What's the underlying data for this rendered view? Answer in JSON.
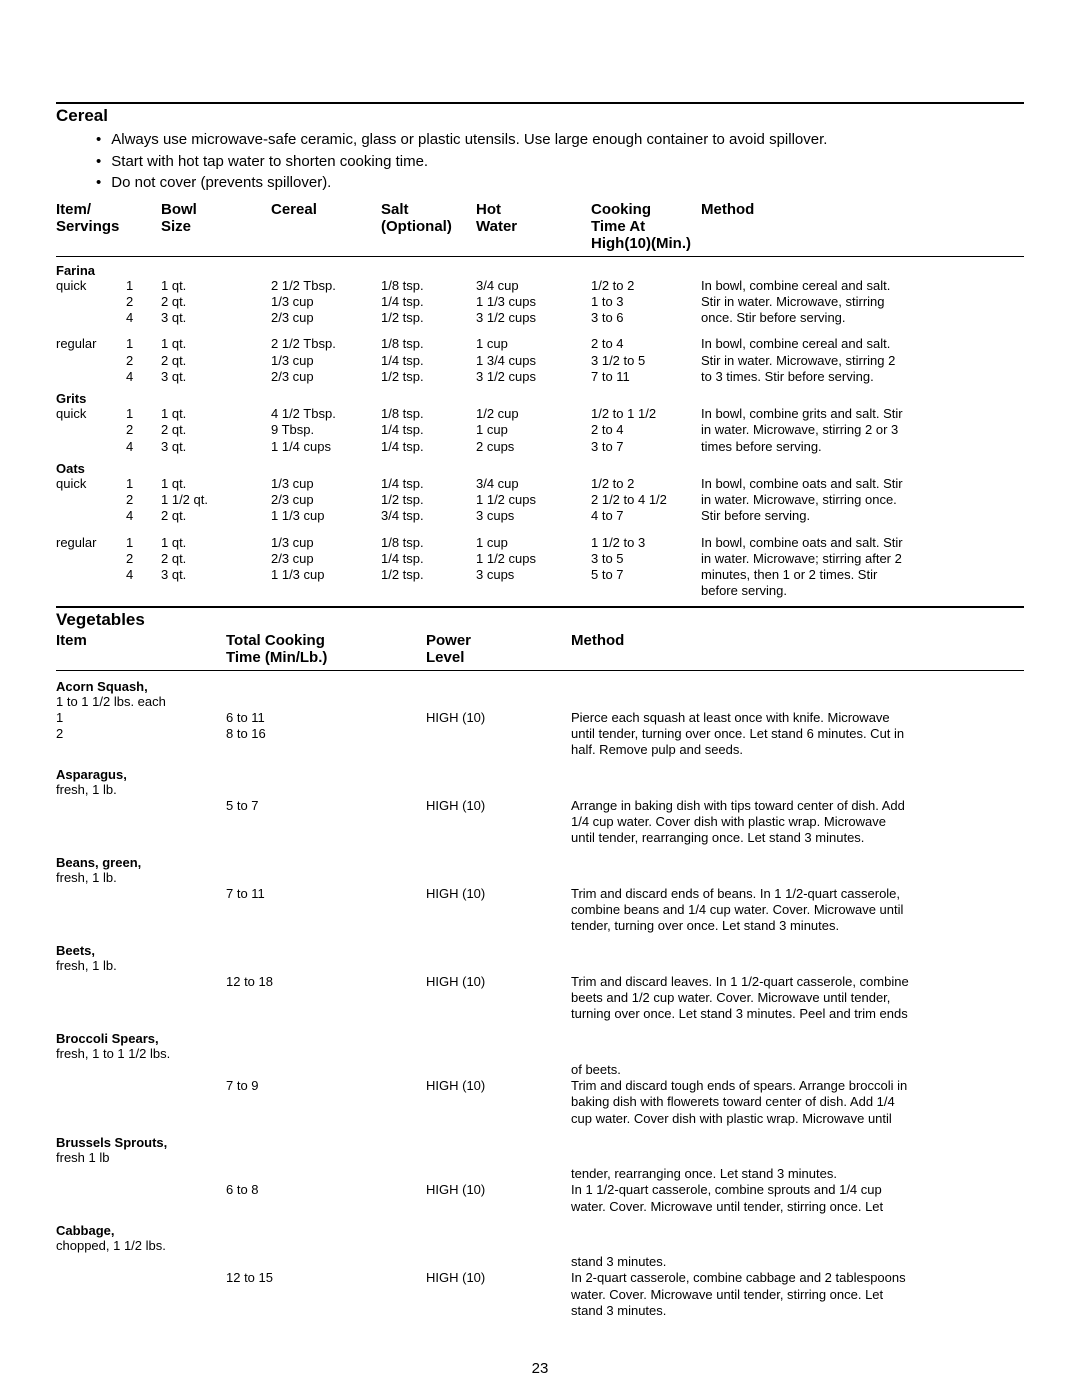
{
  "page_number": "23",
  "cereal": {
    "title": "Cereal",
    "tips": [
      "Always use microwave-safe ceramic, glass or plastic utensils.  Use large enough container to avoid spillover.",
      "Start with hot tap water to shorten cooking time.",
      "Do not cover (prevents spillover)."
    ],
    "headers": {
      "item": "Item/\nServings",
      "bowl": "Bowl\nSize",
      "cereal": "Cereal",
      "salt": "Salt\n(Optional)",
      "hot": "Hot\nWater",
      "time": "Cooking\nTime At\nHigh(10)(Min.)",
      "method": "Method"
    },
    "groups": [
      {
        "name": "Farina",
        "rows": [
          {
            "type": "quick",
            "servings": "1",
            "bowl": "1 qt.",
            "cereal": "2 1/2 Tbsp.",
            "salt": "1/8 tsp.",
            "hot": "3/4 cup",
            "time": "1/2 to 2",
            "method": "In bowl, combine cereal and salt."
          },
          {
            "type": "",
            "servings": "2",
            "bowl": "2 qt.",
            "cereal": "1/3 cup",
            "salt": "1/4 tsp.",
            "hot": "1 1/3 cups",
            "time": "1 to 3",
            "method": "Stir in water.  Microwave, stirring"
          },
          {
            "type": "",
            "servings": "4",
            "bowl": "3 qt.",
            "cereal": "2/3 cup",
            "salt": "1/2 tsp.",
            "hot": "3 1/2 cups",
            "time": "3 to 6",
            "method": "once. Stir before serving."
          },
          {
            "spacer": true
          },
          {
            "type": "regular",
            "servings": "1",
            "bowl": "1 qt.",
            "cereal": "2 1/2 Tbsp.",
            "salt": "1/8 tsp.",
            "hot": "1 cup",
            "time": "2 to 4",
            "method": "In bowl, combine cereal and salt."
          },
          {
            "type": "",
            "servings": "2",
            "bowl": "2 qt.",
            "cereal": "1/3 cup",
            "salt": "1/4 tsp.",
            "hot": "1 3/4 cups",
            "time": "3 1/2 to 5",
            "method": "Stir in water.  Microwave, stirring 2"
          },
          {
            "type": "",
            "servings": "4",
            "bowl": "3 qt.",
            "cereal": "2/3 cup",
            "salt": "1/2 tsp.",
            "hot": "3 1/2 cups",
            "time": "7 to 11",
            "method": "to 3 times.  Stir before serving."
          }
        ]
      },
      {
        "name": "Grits",
        "rows": [
          {
            "type": "quick",
            "servings": "1",
            "bowl": "1 qt.",
            "cereal": "4 1/2 Tbsp.",
            "salt": "1/8 tsp.",
            "hot": "1/2 cup",
            "time": "1/2 to 1 1/2",
            "method": "In bowl, combine grits and salt. Stir"
          },
          {
            "type": "",
            "servings": "2",
            "bowl": "2 qt.",
            "cereal": "9 Tbsp.",
            "salt": "1/4 tsp.",
            "hot": "1 cup",
            "time": "2 to 4",
            "method": "in water.  Microwave, stirring 2 or 3"
          },
          {
            "type": "",
            "servings": "4",
            "bowl": "3 qt.",
            "cereal": "1 1/4 cups",
            "salt": "1/4 tsp.",
            "hot": "2 cups",
            "time": "3 to 7",
            "method": "times before serving."
          }
        ]
      },
      {
        "name": "Oats",
        "rows": [
          {
            "type": "quick",
            "servings": "1",
            "bowl": "1 qt.",
            "cereal": "1/3 cup",
            "salt": "1/4 tsp.",
            "hot": "3/4 cup",
            "time": "1/2 to 2",
            "method": "In bowl, combine oats and salt. Stir"
          },
          {
            "type": "",
            "servings": "2",
            "bowl": "1 1/2 qt.",
            "cereal": "2/3 cup",
            "salt": "1/2 tsp.",
            "hot": "1 1/2 cups",
            "time": "2 1/2 to 4 1/2",
            "method": "in water. Microwave, stirring once."
          },
          {
            "type": "",
            "servings": "4",
            "bowl": "2 qt.",
            "cereal": "1 1/3 cup",
            "salt": "3/4 tsp.",
            "hot": "3 cups",
            "time": "4 to 7",
            "method": "Stir before serving."
          },
          {
            "spacer": true
          },
          {
            "type": "regular",
            "servings": "1",
            "bowl": "1 qt.",
            "cereal": "1/3 cup",
            "salt": "1/8 tsp.",
            "hot": "1 cup",
            "time": "1 1/2 to 3",
            "method": "In bowl, combine oats and salt. Stir"
          },
          {
            "type": "",
            "servings": "2",
            "bowl": "2 qt.",
            "cereal": "2/3 cup",
            "salt": "1/4 tsp.",
            "hot": "1 1/2 cups",
            "time": "3 to 5",
            "method": "in water. Microwave; stirring after 2"
          },
          {
            "type": "",
            "servings": "4",
            "bowl": "3 qt.",
            "cereal": "1 1/3 cup",
            "salt": "1/2 tsp.",
            "hot": "3 cups",
            "time": "5 to 7",
            "method": "minutes, then 1 or 2 times.  Stir"
          },
          {
            "type": "",
            "servings": "",
            "bowl": "",
            "cereal": "",
            "salt": "",
            "hot": "",
            "time": "",
            "method": "before serving."
          }
        ]
      }
    ]
  },
  "veg": {
    "title": "Vegetables",
    "headers": {
      "item": "Item",
      "time": "Total Cooking\nTime (Min/Lb.)",
      "power": "Power\nLevel",
      "method": "Method"
    },
    "items": [
      {
        "name": "Acorn Squash,",
        "note": "1 to 1 1/2 lbs. each",
        "rows": [
          {
            "item": "1",
            "time": "6 to 11",
            "power": "HIGH (10)",
            "method": "Pierce each squash at least once with knife.  Microwave"
          },
          {
            "item": "2",
            "time": "8 to 16",
            "power": "",
            "method": "until tender, turning over once.  Let stand 6 minutes.  Cut in"
          },
          {
            "item": "",
            "time": "",
            "power": "",
            "method": "half.  Remove pulp and seeds."
          }
        ]
      },
      {
        "name": "Asparagus,",
        "note": "fresh, 1 lb.",
        "rows": [
          {
            "item": "",
            "time": "5 to 7",
            "power": "HIGH (10)",
            "method": "Arrange in baking dish with tips toward center of dish.  Add"
          },
          {
            "item": "",
            "time": "",
            "power": "",
            "method": "1/4 cup water.  Cover dish with plastic wrap.  Microwave"
          },
          {
            "item": "",
            "time": "",
            "power": "",
            "method": "until tender, rearranging once.  Let stand 3 minutes."
          }
        ]
      },
      {
        "name": "Beans, green,",
        "note": "fresh, 1 lb.",
        "rows": [
          {
            "item": "",
            "time": "7 to 11",
            "power": "HIGH (10)",
            "method": "Trim and discard ends of beans.  In 1 1/2-quart casserole,"
          },
          {
            "item": "",
            "time": "",
            "power": "",
            "method": "combine beans and 1/4 cup water.  Cover.  Microwave until"
          },
          {
            "item": "",
            "time": "",
            "power": "",
            "method": "tender, turning over once.  Let stand 3 minutes."
          }
        ]
      },
      {
        "name": "Beets,",
        "note": "fresh, 1 lb.",
        "rows": [
          {
            "item": "",
            "time": "12 to 18",
            "power": "HIGH (10)",
            "method": "Trim and discard leaves.  In 1 1/2-quart casserole, combine"
          },
          {
            "item": "",
            "time": "",
            "power": "",
            "method": "beets and 1/2 cup water.  Cover.  Microwave until tender,"
          },
          {
            "item": "",
            "time": "",
            "power": "",
            "method": "turning over once.  Let stand 3 minutes.  Peel and trim ends"
          }
        ]
      },
      {
        "name": "Broccoli Spears,",
        "note": "fresh, 1 to 1 1/2 lbs.",
        "rows": [
          {
            "item": "",
            "time": "",
            "power": "",
            "method": "of beets."
          },
          {
            "item": "",
            "time": "7 to 9",
            "power": "HIGH (10)",
            "method": "Trim and discard tough ends of spears. Arrange broccoli in"
          },
          {
            "item": "",
            "time": "",
            "power": "",
            "method": "baking dish with flowerets toward center of dish.  Add 1/4"
          },
          {
            "item": "",
            "time": "",
            "power": "",
            "method": "cup water.  Cover dish with plastic wrap.  Microwave until"
          }
        ]
      },
      {
        "name": "Brussels Sprouts,",
        "note": "fresh 1 lb",
        "rows": [
          {
            "item": "",
            "time": "",
            "power": "",
            "method": "tender, rearranging once.  Let stand 3 minutes."
          },
          {
            "item": "",
            "time": "6 to 8",
            "power": "HIGH (10)",
            "method": "In 1 1/2-quart casserole, combine sprouts and 1/4 cup"
          },
          {
            "item": "",
            "time": "",
            "power": "",
            "method": "water.  Cover.  Microwave until tender, stirring once.  Let"
          }
        ]
      },
      {
        "name": "Cabbage,",
        "note": "chopped, 1 1/2 lbs.",
        "rows": [
          {
            "item": "",
            "time": "",
            "power": "",
            "method": "stand 3 minutes."
          },
          {
            "item": "",
            "time": "12 to 15",
            "power": "HIGH (10)",
            "method": "In 2-quart casserole, combine cabbage and 2 tablespoons"
          },
          {
            "item": "",
            "time": "",
            "power": "",
            "method": "water.  Cover. Microwave until tender, stirring once.  Let"
          },
          {
            "item": "",
            "time": "",
            "power": "",
            "method": "stand 3 minutes."
          }
        ]
      }
    ]
  }
}
